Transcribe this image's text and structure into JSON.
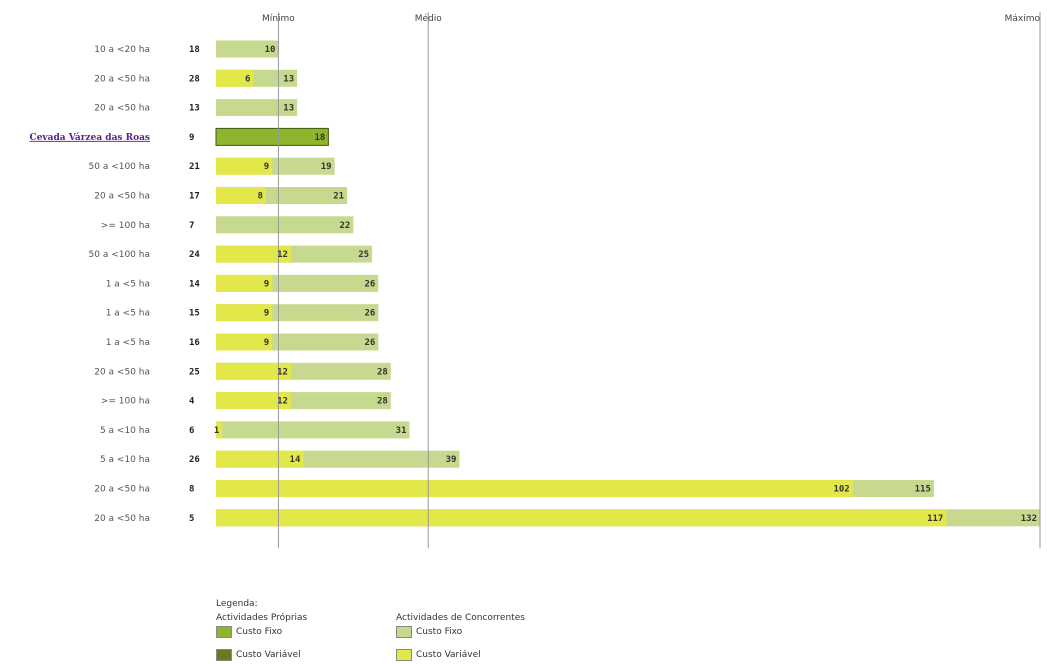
{
  "chart_data": {
    "type": "bar",
    "orientation": "horizontal",
    "stacked": true,
    "reference_lines": [
      {
        "label": "Mínimo",
        "value": 10
      },
      {
        "label": "Médio",
        "value": 34
      },
      {
        "label": "Máximo",
        "value": 132
      }
    ],
    "xlim": [
      0,
      132
    ],
    "rows": [
      {
        "label": "10 a <20 ha",
        "id": "18",
        "variable": null,
        "total": 10,
        "own": false
      },
      {
        "label": "20 a <50 ha",
        "id": "28",
        "variable": 6,
        "total": 13,
        "own": false
      },
      {
        "label": "20 a <50 ha",
        "id": "13",
        "variable": null,
        "total": 13,
        "own": false
      },
      {
        "label": "Cevada Várzea das Roas",
        "id": "9",
        "variable": null,
        "total": 18,
        "own": true
      },
      {
        "label": "50 a <100 ha",
        "id": "21",
        "variable": 9,
        "total": 19,
        "own": false
      },
      {
        "label": "20 a <50 ha",
        "id": "17",
        "variable": 8,
        "total": 21,
        "own": false
      },
      {
        "label": ">= 100 ha",
        "id": "7",
        "variable": null,
        "total": 22,
        "own": false
      },
      {
        "label": "50 a <100 ha",
        "id": "24",
        "variable": 12,
        "total": 25,
        "own": false
      },
      {
        "label": "1 a <5 ha",
        "id": "14",
        "variable": 9,
        "total": 26,
        "own": false
      },
      {
        "label": "1 a <5 ha",
        "id": "15",
        "variable": 9,
        "total": 26,
        "own": false
      },
      {
        "label": "1 a <5 ha",
        "id": "16",
        "variable": 9,
        "total": 26,
        "own": false
      },
      {
        "label": "20 a <50 ha",
        "id": "25",
        "variable": 12,
        "total": 28,
        "own": false
      },
      {
        "label": ">= 100 ha",
        "id": "4",
        "variable": 12,
        "total": 28,
        "own": false
      },
      {
        "label": "5 a <10 ha",
        "id": "6",
        "variable": 1,
        "total": 31,
        "own": false
      },
      {
        "label": "5 a <10 ha",
        "id": "26",
        "variable": 14,
        "total": 39,
        "own": false
      },
      {
        "label": "20 a <50 ha",
        "id": "8",
        "variable": 102,
        "total": 115,
        "own": false
      },
      {
        "label": "20 a <50 ha",
        "id": "5",
        "variable": 117,
        "total": 132,
        "own": false
      }
    ],
    "colors": {
      "own_fixed": "#8db52e",
      "own_variable": "#6b7a1e",
      "comp_fixed": "#c6d98e",
      "comp_variable": "#e3e84a"
    }
  },
  "legend": {
    "title": "Legenda:",
    "group_own": "Actividades Próprias",
    "group_comp": "Actividades de Concorrentes",
    "fixed_label": "Custo Fixo",
    "variable_label": "Custo Variável"
  }
}
